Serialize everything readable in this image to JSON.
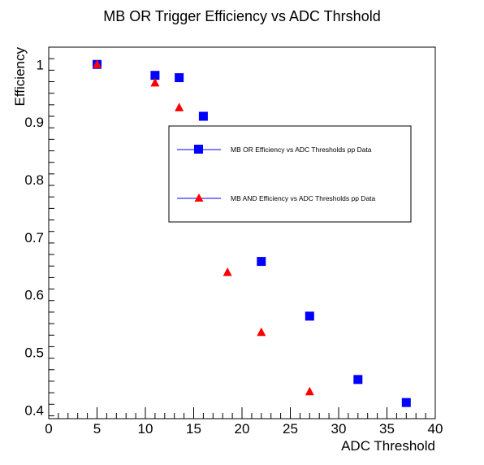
{
  "chart_data": {
    "type": "scatter",
    "title": "MB OR Trigger Efficiency vs ADC Thrshold",
    "xlabel": "ADC Threshold",
    "ylabel": "Efficiency",
    "xlim": [
      0,
      40
    ],
    "ylim": [
      0.385,
      1.03
    ],
    "x_ticks": [
      0,
      5,
      10,
      15,
      20,
      25,
      30,
      35,
      40
    ],
    "y_ticks": [
      0.4,
      0.5,
      0.6,
      0.7,
      0.8,
      0.9,
      1
    ],
    "x_tick_labels": [
      "0",
      "5",
      "10",
      "15",
      "20",
      "25",
      "30",
      "35",
      "40"
    ],
    "y_tick_labels": [
      "0.4",
      "0.5",
      "0.6",
      "0.7",
      "0.8",
      "0.9",
      "1"
    ],
    "grid": false,
    "legend_position": "center-right",
    "series": [
      {
        "name": "MB OR Efficiency vs ADC Thresholds pp Data",
        "marker": "square",
        "color": "#0000ff",
        "x": [
          5,
          11,
          13.5,
          16,
          22,
          27,
          32,
          37
        ],
        "y": [
          1.0,
          0.981,
          0.977,
          0.91,
          0.658,
          0.563,
          0.453,
          0.413
        ]
      },
      {
        "name": "MB AND Efficiency vs ADC Thresholds pp Data",
        "marker": "triangle",
        "color": "#ff0000",
        "x": [
          5,
          11,
          13.5,
          18.5,
          22,
          27
        ],
        "y": [
          1.0,
          0.968,
          0.925,
          0.639,
          0.535,
          0.432
        ]
      }
    ]
  }
}
